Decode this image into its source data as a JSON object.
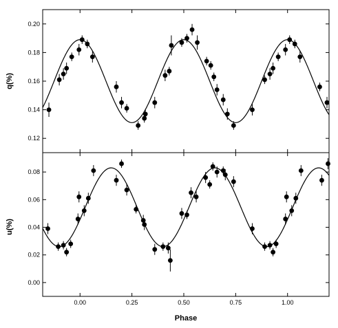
{
  "chart_data": [
    {
      "type": "scatter",
      "panel": "top",
      "ylabel": "q(%)",
      "xlim": [
        -0.18,
        1.2
      ],
      "ylim": [
        0.11,
        0.21
      ],
      "yticks": [
        0.12,
        0.14,
        0.16,
        0.18,
        0.2
      ],
      "ytick_labels": [
        "0.12",
        "0.14",
        "0.16",
        "0.18",
        "0.20"
      ],
      "xticks": [
        0.0,
        0.25,
        0.5,
        0.75,
        1.0
      ],
      "model_curve": {
        "mean": 0.16,
        "amplitude": 0.029,
        "period": 0.5,
        "peak_phase": 0.0
      },
      "points": [
        {
          "x": -0.15,
          "y": 0.14,
          "err": 0.005
        },
        {
          "x": -0.1,
          "y": 0.161,
          "err": 0.004
        },
        {
          "x": -0.08,
          "y": 0.165,
          "err": 0.004
        },
        {
          "x": -0.065,
          "y": 0.169,
          "err": 0.004
        },
        {
          "x": -0.04,
          "y": 0.177,
          "err": 0.003
        },
        {
          "x": -0.005,
          "y": 0.182,
          "err": 0.004
        },
        {
          "x": 0.01,
          "y": 0.189,
          "err": 0.003
        },
        {
          "x": 0.035,
          "y": 0.186,
          "err": 0.003
        },
        {
          "x": 0.06,
          "y": 0.177,
          "err": 0.004
        },
        {
          "x": 0.175,
          "y": 0.156,
          "err": 0.004
        },
        {
          "x": 0.2,
          "y": 0.145,
          "err": 0.004
        },
        {
          "x": 0.225,
          "y": 0.141,
          "err": 0.003
        },
        {
          "x": 0.28,
          "y": 0.129,
          "err": 0.003
        },
        {
          "x": 0.31,
          "y": 0.134,
          "err": 0.003
        },
        {
          "x": 0.315,
          "y": 0.137,
          "err": 0.003
        },
        {
          "x": 0.36,
          "y": 0.145,
          "err": 0.004
        },
        {
          "x": 0.41,
          "y": 0.164,
          "err": 0.004
        },
        {
          "x": 0.43,
          "y": 0.167,
          "err": 0.003
        },
        {
          "x": 0.44,
          "y": 0.185,
          "err": 0.007
        },
        {
          "x": 0.49,
          "y": 0.187,
          "err": 0.003
        },
        {
          "x": 0.515,
          "y": 0.19,
          "err": 0.003
        },
        {
          "x": 0.54,
          "y": 0.196,
          "err": 0.004
        },
        {
          "x": 0.565,
          "y": 0.187,
          "err": 0.005
        },
        {
          "x": 0.61,
          "y": 0.174,
          "err": 0.003
        },
        {
          "x": 0.63,
          "y": 0.171,
          "err": 0.003
        },
        {
          "x": 0.645,
          "y": 0.163,
          "err": 0.003
        },
        {
          "x": 0.66,
          "y": 0.154,
          "err": 0.004
        },
        {
          "x": 0.69,
          "y": 0.147,
          "err": 0.004
        },
        {
          "x": 0.71,
          "y": 0.137,
          "err": 0.004
        },
        {
          "x": 0.74,
          "y": 0.129,
          "err": 0.003
        },
        {
          "x": 0.83,
          "y": 0.14,
          "err": 0.004
        },
        {
          "x": 0.89,
          "y": 0.161,
          "err": 0.003
        },
        {
          "x": 0.915,
          "y": 0.165,
          "err": 0.004
        },
        {
          "x": 0.93,
          "y": 0.169,
          "err": 0.004
        },
        {
          "x": 0.955,
          "y": 0.177,
          "err": 0.003
        },
        {
          "x": 0.99,
          "y": 0.182,
          "err": 0.004
        },
        {
          "x": 1.01,
          "y": 0.189,
          "err": 0.003
        },
        {
          "x": 1.035,
          "y": 0.186,
          "err": 0.003
        },
        {
          "x": 1.06,
          "y": 0.177,
          "err": 0.004
        },
        {
          "x": 1.155,
          "y": 0.156,
          "err": 0.003
        },
        {
          "x": 1.19,
          "y": 0.145,
          "err": 0.004
        }
      ]
    },
    {
      "type": "scatter",
      "panel": "bottom",
      "ylabel": "u(%)",
      "xlabel": "Phase",
      "xlim": [
        -0.18,
        1.2
      ],
      "ylim": [
        -0.01,
        0.094
      ],
      "yticks": [
        0.0,
        0.02,
        0.04,
        0.06,
        0.08
      ],
      "ytick_labels": [
        "0.00",
        "0.02",
        "0.04",
        "0.06",
        "0.08"
      ],
      "xticks": [
        0.0,
        0.25,
        0.5,
        0.75,
        1.0
      ],
      "xtick_labels": [
        "0.00",
        "0.25",
        "0.50",
        "0.75",
        "1.00"
      ],
      "model_curve": {
        "mean": 0.0545,
        "amplitude": 0.0285,
        "period": 0.5,
        "peak_phase": 0.15
      },
      "points": [
        {
          "x": -0.155,
          "y": 0.039,
          "err": 0.004
        },
        {
          "x": -0.105,
          "y": 0.026,
          "err": 0.003
        },
        {
          "x": -0.08,
          "y": 0.027,
          "err": 0.003
        },
        {
          "x": -0.065,
          "y": 0.022,
          "err": 0.003
        },
        {
          "x": -0.045,
          "y": 0.028,
          "err": 0.003
        },
        {
          "x": -0.01,
          "y": 0.046,
          "err": 0.004
        },
        {
          "x": -0.005,
          "y": 0.062,
          "err": 0.004
        },
        {
          "x": 0.02,
          "y": 0.052,
          "err": 0.004
        },
        {
          "x": 0.04,
          "y": 0.061,
          "err": 0.004
        },
        {
          "x": 0.065,
          "y": 0.081,
          "err": 0.004
        },
        {
          "x": 0.175,
          "y": 0.074,
          "err": 0.004
        },
        {
          "x": 0.2,
          "y": 0.086,
          "err": 0.003
        },
        {
          "x": 0.225,
          "y": 0.067,
          "err": 0.004
        },
        {
          "x": 0.27,
          "y": 0.053,
          "err": 0.003
        },
        {
          "x": 0.305,
          "y": 0.045,
          "err": 0.004
        },
        {
          "x": 0.31,
          "y": 0.042,
          "err": 0.004
        },
        {
          "x": 0.36,
          "y": 0.024,
          "err": 0.004
        },
        {
          "x": 0.4,
          "y": 0.026,
          "err": 0.003
        },
        {
          "x": 0.425,
          "y": 0.025,
          "err": 0.004
        },
        {
          "x": 0.435,
          "y": 0.016,
          "err": 0.008
        },
        {
          "x": 0.49,
          "y": 0.05,
          "err": 0.004
        },
        {
          "x": 0.515,
          "y": 0.049,
          "err": 0.003
        },
        {
          "x": 0.535,
          "y": 0.065,
          "err": 0.004
        },
        {
          "x": 0.56,
          "y": 0.062,
          "err": 0.004
        },
        {
          "x": 0.605,
          "y": 0.076,
          "err": 0.004
        },
        {
          "x": 0.625,
          "y": 0.071,
          "err": 0.003
        },
        {
          "x": 0.64,
          "y": 0.084,
          "err": 0.003
        },
        {
          "x": 0.66,
          "y": 0.08,
          "err": 0.004
        },
        {
          "x": 0.69,
          "y": 0.081,
          "err": 0.003
        },
        {
          "x": 0.7,
          "y": 0.078,
          "err": 0.004
        },
        {
          "x": 0.74,
          "y": 0.073,
          "err": 0.004
        },
        {
          "x": 0.83,
          "y": 0.039,
          "err": 0.004
        },
        {
          "x": 0.89,
          "y": 0.026,
          "err": 0.003
        },
        {
          "x": 0.915,
          "y": 0.027,
          "err": 0.003
        },
        {
          "x": 0.93,
          "y": 0.022,
          "err": 0.003
        },
        {
          "x": 0.945,
          "y": 0.028,
          "err": 0.003
        },
        {
          "x": 0.99,
          "y": 0.046,
          "err": 0.004
        },
        {
          "x": 0.995,
          "y": 0.062,
          "err": 0.004
        },
        {
          "x": 1.02,
          "y": 0.052,
          "err": 0.004
        },
        {
          "x": 1.04,
          "y": 0.061,
          "err": 0.004
        },
        {
          "x": 1.065,
          "y": 0.081,
          "err": 0.004
        },
        {
          "x": 1.165,
          "y": 0.074,
          "err": 0.004
        },
        {
          "x": 1.195,
          "y": 0.086,
          "err": 0.004
        }
      ]
    }
  ],
  "colors": {
    "ink": "#000000",
    "background": "#ffffff"
  }
}
